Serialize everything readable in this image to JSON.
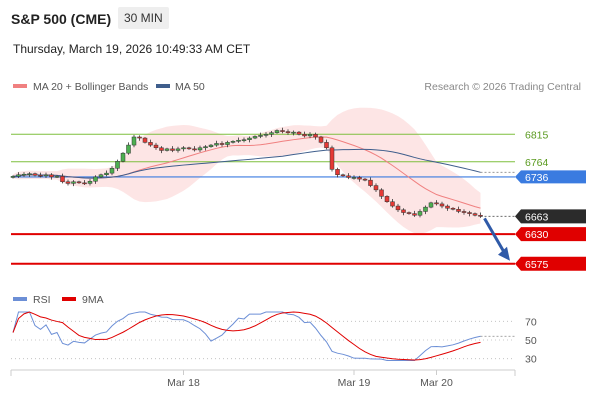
{
  "header": {
    "title": "S&P 500 (CME)",
    "timeframe": "30 MIN",
    "datetime": "Thursday, March 19, 2026 10:49:33 AM CET"
  },
  "legend": {
    "ma20_label": "MA 20 + Bollinger Bands",
    "ma50_label": "MA 50",
    "credit": "Research © 2026 Trading Central",
    "ma20_color": "#f08080",
    "ma50_color": "#3f5e8c"
  },
  "rsi_legend": {
    "rsi_label": "RSI",
    "ma9_label": "9MA",
    "rsi_color": "#6c8fd6",
    "ma9_color": "#e00000"
  },
  "chart_data": {
    "type": "candlestick",
    "price_axis": {
      "range": [
        6545,
        6860
      ]
    },
    "levels": [
      {
        "value": 6815,
        "label": "6815",
        "kind": "resistance",
        "color": "#7fbf3f"
      },
      {
        "value": 6764,
        "label": "6764",
        "kind": "resistance",
        "color": "#7fbf3f"
      },
      {
        "value": 6736,
        "label": "6736",
        "kind": "pivot",
        "color": "#3a7be0"
      },
      {
        "value": 6663,
        "label": "6663",
        "kind": "last_price",
        "color": "#2b2b2b"
      },
      {
        "value": 6630,
        "label": "6630",
        "kind": "support",
        "color": "#e00000"
      },
      {
        "value": 6575,
        "label": "6575",
        "kind": "support",
        "color": "#e00000"
      }
    ],
    "x_axis": {
      "ticks": [
        {
          "label": "Mar 18",
          "index": 31
        },
        {
          "label": "Mar 19",
          "index": 62
        },
        {
          "label": "Mar 20",
          "index": 77
        }
      ]
    },
    "candles": {
      "close": [
        6737,
        6740,
        6741,
        6742,
        6739,
        6738,
        6740,
        6736,
        6737,
        6727,
        6724,
        6727,
        6725,
        6724,
        6728,
        6736,
        6740,
        6743,
        6752,
        6765,
        6780,
        6795,
        6810,
        6808,
        6800,
        6795,
        6790,
        6785,
        6788,
        6785,
        6788,
        6790,
        6788,
        6786,
        6790,
        6792,
        6795,
        6798,
        6796,
        6800,
        6802,
        6804,
        6805,
        6808,
        6811,
        6813,
        6815,
        6818,
        6822,
        6820,
        6818,
        6819,
        6815,
        6812,
        6815,
        6810,
        6800,
        6790,
        6750,
        6740,
        6738,
        6735,
        6735,
        6732,
        6730,
        6720,
        6712,
        6700,
        6690,
        6682,
        6675,
        6670,
        6668,
        6665,
        6672,
        6680,
        6688,
        6686,
        6682,
        6678,
        6676,
        6672,
        6670,
        6668,
        6665,
        6663
      ],
      "up_color": "#4caf50",
      "down_color": "#e53935"
    },
    "projection": {
      "from": 6663,
      "to": 6575,
      "color": "#2f5aa8"
    },
    "rsi": {
      "ticks": [
        70,
        50,
        30
      ],
      "range": [
        20,
        80
      ],
      "rsi_color": "#6c8fd6",
      "ma9_color": "#e00000"
    }
  }
}
